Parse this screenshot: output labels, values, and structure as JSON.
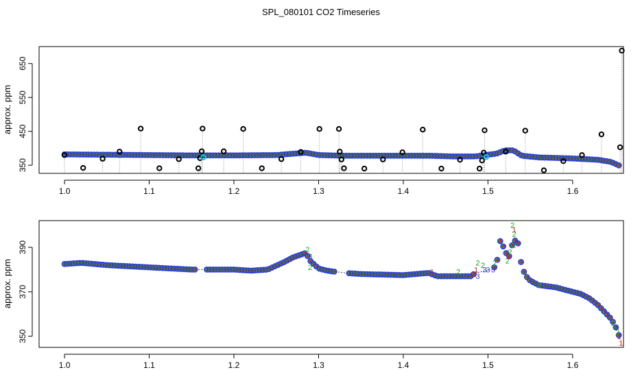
{
  "figure": {
    "title": "SPL_080101  CO2 Timeseries"
  },
  "chart_data": [
    {
      "type": "scatter",
      "panel": "top",
      "title": "SPL_080101  CO2 Timeseries",
      "xlabel": "",
      "ylabel": "approx. ppm",
      "xlim": [
        0.97,
        1.66
      ],
      "ylim": [
        326,
        700
      ],
      "xticks": [
        1.0,
        1.1,
        1.2,
        1.3,
        1.4,
        1.5,
        1.6
      ],
      "xtick_labels": [
        "1.0",
        "1.1",
        "1.2",
        "1.3",
        "1.4",
        "1.5",
        "1.6"
      ],
      "yticks": [
        350,
        450,
        550,
        650
      ],
      "ytick_labels": [
        "350",
        "450",
        "550",
        "650"
      ],
      "grid": false,
      "colors": {
        "main": "#2e3cd6",
        "outlier": "#000000",
        "green": "#1aa31a",
        "red": "#d11a1a",
        "cyan": "#16c8e6"
      },
      "main_series": {
        "name": "CO2",
        "baseline_x": [
          1.0,
          1.1,
          1.15,
          1.2,
          1.25,
          1.27,
          1.285,
          1.3,
          1.33,
          1.43,
          1.46,
          1.485,
          1.5,
          1.51,
          1.52,
          1.53,
          1.54,
          1.56,
          1.6,
          1.63,
          1.645,
          1.655
        ],
        "baseline_y": [
          382,
          380,
          379,
          379,
          380,
          384,
          387,
          380,
          378,
          378,
          376,
          376,
          381,
          384,
          394,
          394,
          378,
          373,
          370,
          366,
          360,
          349
        ]
      },
      "outliers": [
        {
          "x": 1.0,
          "y": 380
        },
        {
          "x": 1.022,
          "y": 342
        },
        {
          "x": 1.045,
          "y": 369
        },
        {
          "x": 1.065,
          "y": 390
        },
        {
          "x": 1.09,
          "y": 458
        },
        {
          "x": 1.112,
          "y": 341
        },
        {
          "x": 1.135,
          "y": 368
        },
        {
          "x": 1.158,
          "y": 341
        },
        {
          "x": 1.16,
          "y": 371
        },
        {
          "x": 1.162,
          "y": 391
        },
        {
          "x": 1.163,
          "y": 458
        },
        {
          "x": 1.188,
          "y": 391
        },
        {
          "x": 1.211,
          "y": 457
        },
        {
          "x": 1.233,
          "y": 341
        },
        {
          "x": 1.256,
          "y": 368
        },
        {
          "x": 1.279,
          "y": 389
        },
        {
          "x": 1.301,
          "y": 457
        },
        {
          "x": 1.324,
          "y": 457
        },
        {
          "x": 1.325,
          "y": 390
        },
        {
          "x": 1.327,
          "y": 367
        },
        {
          "x": 1.33,
          "y": 341
        },
        {
          "x": 1.354,
          "y": 340
        },
        {
          "x": 1.376,
          "y": 367
        },
        {
          "x": 1.399,
          "y": 388
        },
        {
          "x": 1.423,
          "y": 455
        },
        {
          "x": 1.445,
          "y": 340
        },
        {
          "x": 1.467,
          "y": 366
        },
        {
          "x": 1.49,
          "y": 340
        },
        {
          "x": 1.493,
          "y": 364
        },
        {
          "x": 1.495,
          "y": 387
        },
        {
          "x": 1.496,
          "y": 453
        },
        {
          "x": 1.521,
          "y": 390
        },
        {
          "x": 1.544,
          "y": 452
        },
        {
          "x": 1.566,
          "y": 335
        },
        {
          "x": 1.589,
          "y": 362
        },
        {
          "x": 1.611,
          "y": 380
        },
        {
          "x": 1.634,
          "y": 441
        },
        {
          "x": 1.656,
          "y": 403
        },
        {
          "x": 1.658,
          "y": 688
        }
      ],
      "cyan_points": [
        {
          "x": 1.164,
          "y": 373
        },
        {
          "x": 1.498,
          "y": 374
        }
      ]
    },
    {
      "type": "scatter",
      "panel": "bottom",
      "xlabel": "",
      "ylabel": "approx. ppm",
      "xlim": [
        0.97,
        1.66
      ],
      "ylim": [
        345,
        402
      ],
      "xticks": [
        1.0,
        1.1,
        1.2,
        1.3,
        1.4,
        1.5,
        1.6
      ],
      "xtick_labels": [
        "1.0",
        "1.1",
        "1.2",
        "1.3",
        "1.4",
        "1.5",
        "1.6"
      ],
      "yticks": [
        350,
        370,
        390
      ],
      "ytick_labels": [
        "350",
        "370",
        "390"
      ],
      "grid": false,
      "main_series": {
        "name": "CO2",
        "baseline_x": [
          1.0,
          1.02,
          1.05,
          1.1,
          1.15,
          1.2,
          1.22,
          1.24,
          1.26,
          1.27,
          1.285,
          1.29,
          1.3,
          1.31,
          1.33,
          1.35,
          1.4,
          1.43,
          1.44,
          1.46,
          1.48,
          1.49,
          1.5,
          1.505,
          1.51,
          1.515,
          1.52,
          1.525,
          1.53,
          1.535,
          1.54,
          1.545,
          1.55,
          1.56,
          1.58,
          1.6,
          1.61,
          1.62,
          1.63,
          1.64,
          1.645,
          1.65,
          1.655
        ],
        "baseline_y": [
          382.5,
          383,
          382,
          381,
          380,
          380,
          379.5,
          380,
          383.5,
          385.5,
          387.5,
          384,
          380.5,
          379.5,
          378.5,
          378,
          377.5,
          378.5,
          377,
          377,
          377,
          380,
          380,
          380,
          382,
          394,
          388,
          386,
          393,
          393,
          381,
          377,
          375,
          373,
          372,
          370,
          369,
          367,
          364,
          360,
          358,
          355,
          350
        ]
      },
      "gaps": [
        {
          "from": 1.155,
          "to": 1.165
        },
        {
          "from": 1.32,
          "to": 1.335
        },
        {
          "from": 1.485,
          "to": 1.505
        }
      ],
      "number_labels": [
        {
          "text": "2",
          "x": 1.287,
          "y": 389,
          "color": "#1aa31a"
        },
        {
          "text": "3",
          "x": 1.29,
          "y": 386,
          "color": "#2e3cd6"
        },
        {
          "text": "2",
          "x": 1.29,
          "y": 381,
          "color": "#1aa31a"
        },
        {
          "text": "1",
          "x": 1.434,
          "y": 379,
          "color": "#d11a1a"
        },
        {
          "text": "2",
          "x": 1.465,
          "y": 379,
          "color": "#1aa31a"
        },
        {
          "text": "1",
          "x": 1.486,
          "y": 380,
          "color": "#d11a1a"
        },
        {
          "text": "2",
          "x": 1.488,
          "y": 383,
          "color": "#1aa31a"
        },
        {
          "text": "1",
          "x": 1.484,
          "y": 378,
          "color": "#d11a1a"
        },
        {
          "text": "3",
          "x": 1.488,
          "y": 377,
          "color": "#2e3cd6"
        },
        {
          "text": "2",
          "x": 1.494,
          "y": 382,
          "color": "#1aa31a"
        },
        {
          "text": "3",
          "x": 1.496,
          "y": 380,
          "color": "#2e3cd6"
        },
        {
          "text": "3",
          "x": 1.5,
          "y": 380,
          "color": "#2e3cd6"
        },
        {
          "text": "3",
          "x": 1.506,
          "y": 380,
          "color": "#2e3cd6"
        },
        {
          "text": "2",
          "x": 1.508,
          "y": 383,
          "color": "#1aa31a"
        },
        {
          "text": "2",
          "x": 1.523,
          "y": 384,
          "color": "#1aa31a"
        },
        {
          "text": "2",
          "x": 1.526,
          "y": 388,
          "color": "#1aa31a"
        },
        {
          "text": "1",
          "x": 1.524,
          "y": 386,
          "color": "#d11a1a"
        },
        {
          "text": "2",
          "x": 1.529,
          "y": 400,
          "color": "#1aa31a"
        },
        {
          "text": "2",
          "x": 1.531,
          "y": 396,
          "color": "#1aa31a"
        },
        {
          "text": "2",
          "x": 1.531,
          "y": 391,
          "color": "#1aa31a"
        },
        {
          "text": "3",
          "x": 1.533,
          "y": 393,
          "color": "#2e3cd6"
        },
        {
          "text": "1",
          "x": 1.531,
          "y": 398,
          "color": "#d11a1a"
        },
        {
          "text": "2",
          "x": 1.545,
          "y": 377,
          "color": "#1aa31a"
        },
        {
          "text": "2",
          "x": 1.56,
          "y": 373,
          "color": "#1aa31a"
        },
        {
          "text": "2",
          "x": 1.648,
          "y": 356,
          "color": "#1aa31a"
        },
        {
          "text": "3",
          "x": 1.651,
          "y": 354,
          "color": "#2e3cd6"
        },
        {
          "text": "2",
          "x": 1.653,
          "y": 352,
          "color": "#1aa31a"
        },
        {
          "text": "1",
          "x": 1.655,
          "y": 350,
          "color": "#d11a1a"
        },
        {
          "text": "1",
          "x": 1.657,
          "y": 347,
          "color": "#d11a1a"
        }
      ]
    }
  ]
}
